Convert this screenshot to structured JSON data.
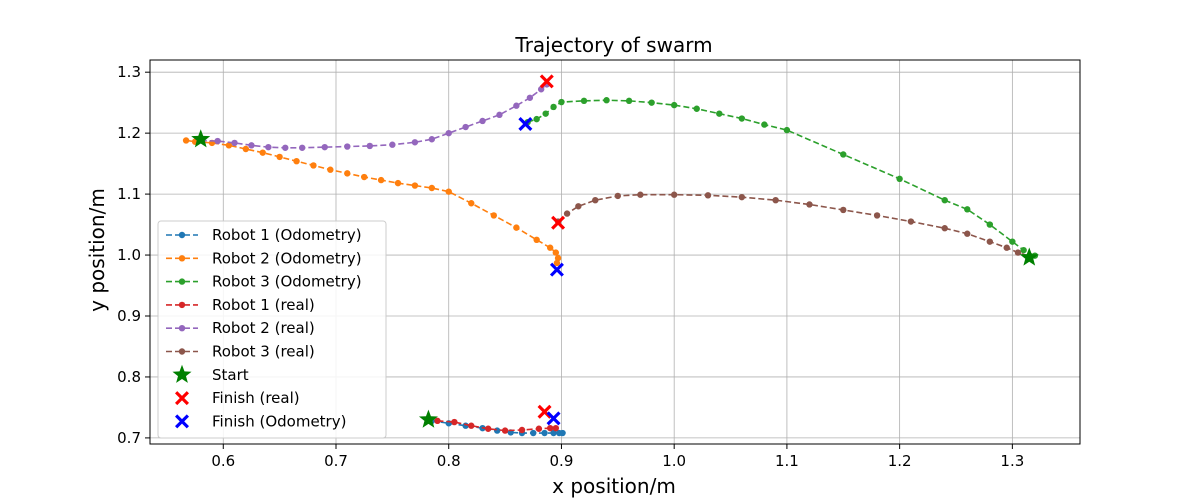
{
  "chart_data": {
    "type": "line",
    "title": "Trajectory of swarm",
    "xlabel": "x position/m",
    "ylabel": "y position/m",
    "xlim": [
      0.535,
      1.36
    ],
    "ylim": [
      0.69,
      1.32
    ],
    "xticks": [
      0.6,
      0.7,
      0.8,
      0.9,
      1.0,
      1.1,
      1.2,
      1.3
    ],
    "yticks": [
      0.7,
      0.8,
      0.9,
      1.0,
      1.1,
      1.2,
      1.3
    ],
    "xtick_labels": [
      "0.6",
      "0.7",
      "0.8",
      "0.9",
      "1.0",
      "1.1",
      "1.2",
      "1.3"
    ],
    "ytick_labels": [
      "0.7",
      "0.8",
      "0.9",
      "1.0",
      "1.1",
      "1.2",
      "1.3"
    ],
    "grid": true,
    "legend_position": "lower-left",
    "series": [
      {
        "name": "Robot 1 (Odometry)",
        "color": "#1f77b4",
        "style": "dashed-marker",
        "points": [
          [
            0.785,
            0.728
          ],
          [
            0.8,
            0.724
          ],
          [
            0.815,
            0.72
          ],
          [
            0.83,
            0.716
          ],
          [
            0.843,
            0.712
          ],
          [
            0.855,
            0.709
          ],
          [
            0.865,
            0.708
          ],
          [
            0.875,
            0.708
          ],
          [
            0.885,
            0.708
          ],
          [
            0.893,
            0.708
          ],
          [
            0.898,
            0.708
          ],
          [
            0.901,
            0.708
          ]
        ]
      },
      {
        "name": "Robot 2 (Odometry)",
        "color": "#ff7f0e",
        "style": "dashed-marker",
        "points": [
          [
            0.567,
            1.188
          ],
          [
            0.575,
            1.186
          ],
          [
            0.59,
            1.184
          ],
          [
            0.605,
            1.18
          ],
          [
            0.62,
            1.174
          ],
          [
            0.635,
            1.168
          ],
          [
            0.65,
            1.161
          ],
          [
            0.665,
            1.154
          ],
          [
            0.68,
            1.147
          ],
          [
            0.695,
            1.14
          ],
          [
            0.71,
            1.134
          ],
          [
            0.725,
            1.128
          ],
          [
            0.74,
            1.123
          ],
          [
            0.755,
            1.118
          ],
          [
            0.77,
            1.114
          ],
          [
            0.785,
            1.11
          ],
          [
            0.8,
            1.104
          ],
          [
            0.82,
            1.085
          ],
          [
            0.84,
            1.065
          ],
          [
            0.86,
            1.045
          ],
          [
            0.878,
            1.025
          ],
          [
            0.89,
            1.012
          ],
          [
            0.895,
            1.004
          ],
          [
            0.897,
            0.995
          ],
          [
            0.896,
            0.987
          ]
        ]
      },
      {
        "name": "Robot 3 (Odometry)",
        "color": "#2ca02c",
        "style": "dashed-marker",
        "points": [
          [
            0.87,
            1.218
          ],
          [
            0.878,
            1.223
          ],
          [
            0.886,
            1.232
          ],
          [
            0.893,
            1.243
          ],
          [
            0.9,
            1.251
          ],
          [
            0.92,
            1.253
          ],
          [
            0.94,
            1.254
          ],
          [
            0.96,
            1.253
          ],
          [
            0.98,
            1.25
          ],
          [
            1.0,
            1.246
          ],
          [
            1.02,
            1.24
          ],
          [
            1.04,
            1.232
          ],
          [
            1.06,
            1.224
          ],
          [
            1.08,
            1.214
          ],
          [
            1.1,
            1.205
          ],
          [
            1.15,
            1.165
          ],
          [
            1.2,
            1.125
          ],
          [
            1.24,
            1.09
          ],
          [
            1.26,
            1.075
          ],
          [
            1.28,
            1.05
          ],
          [
            1.3,
            1.022
          ],
          [
            1.31,
            1.008
          ],
          [
            1.32,
            0.999
          ]
        ]
      },
      {
        "name": "Robot 1 (real)",
        "color": "#d62728",
        "style": "dashed-marker",
        "points": [
          [
            0.79,
            0.728
          ],
          [
            0.805,
            0.726
          ],
          [
            0.82,
            0.72
          ],
          [
            0.835,
            0.715
          ],
          [
            0.85,
            0.712
          ],
          [
            0.865,
            0.713
          ],
          [
            0.88,
            0.715
          ],
          [
            0.89,
            0.716
          ],
          [
            0.895,
            0.716
          ]
        ]
      },
      {
        "name": "Robot 2 (real)",
        "color": "#9467bd",
        "style": "dashed-marker",
        "points": [
          [
            0.58,
            1.188
          ],
          [
            0.595,
            1.187
          ],
          [
            0.61,
            1.184
          ],
          [
            0.625,
            1.18
          ],
          [
            0.64,
            1.177
          ],
          [
            0.655,
            1.176
          ],
          [
            0.67,
            1.176
          ],
          [
            0.69,
            1.177
          ],
          [
            0.71,
            1.178
          ],
          [
            0.73,
            1.179
          ],
          [
            0.75,
            1.181
          ],
          [
            0.77,
            1.185
          ],
          [
            0.785,
            1.19
          ],
          [
            0.8,
            1.2
          ],
          [
            0.815,
            1.21
          ],
          [
            0.83,
            1.22
          ],
          [
            0.845,
            1.23
          ],
          [
            0.86,
            1.245
          ],
          [
            0.872,
            1.258
          ],
          [
            0.882,
            1.272
          ],
          [
            0.887,
            1.28
          ]
        ]
      },
      {
        "name": "Robot 3 (real)",
        "color": "#8c564b",
        "style": "dashed-marker",
        "points": [
          [
            0.897,
            1.055
          ],
          [
            0.905,
            1.068
          ],
          [
            0.915,
            1.08
          ],
          [
            0.93,
            1.09
          ],
          [
            0.95,
            1.097
          ],
          [
            0.97,
            1.099
          ],
          [
            1.0,
            1.099
          ],
          [
            1.03,
            1.098
          ],
          [
            1.06,
            1.095
          ],
          [
            1.09,
            1.09
          ],
          [
            1.12,
            1.083
          ],
          [
            1.15,
            1.074
          ],
          [
            1.18,
            1.065
          ],
          [
            1.21,
            1.055
          ],
          [
            1.24,
            1.044
          ],
          [
            1.26,
            1.035
          ],
          [
            1.28,
            1.022
          ],
          [
            1.295,
            1.012
          ],
          [
            1.305,
            1.004
          ],
          [
            1.315,
            0.998
          ]
        ]
      }
    ],
    "markers": [
      {
        "name": "Start",
        "symbol": "star",
        "color": "#008000",
        "points": [
          [
            0.58,
            1.19
          ],
          [
            1.315,
            0.996
          ],
          [
            0.782,
            0.73
          ]
        ]
      },
      {
        "name": "Finish (real)",
        "symbol": "x",
        "color": "#ff0000",
        "points": [
          [
            0.887,
            1.285
          ],
          [
            0.897,
            1.053
          ],
          [
            0.885,
            0.743
          ]
        ]
      },
      {
        "name": "Finish (Odometry)",
        "symbol": "x",
        "color": "#0000ff",
        "points": [
          [
            0.868,
            1.215
          ],
          [
            0.896,
            0.976
          ],
          [
            0.893,
            0.732
          ]
        ]
      }
    ],
    "legend_order": [
      "Robot 1 (Odometry)",
      "Robot 2 (Odometry)",
      "Robot 3 (Odometry)",
      "Robot 1 (real)",
      "Robot 2 (real)",
      "Robot 3 (real)",
      "Start",
      "Finish (real)",
      "Finish (Odometry)"
    ]
  }
}
